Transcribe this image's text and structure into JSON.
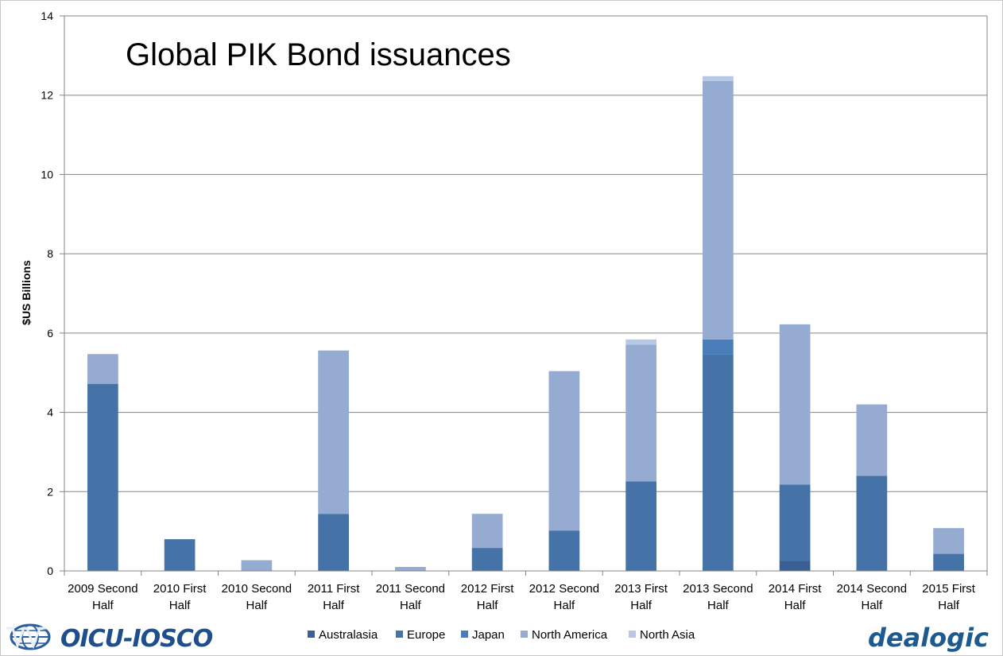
{
  "chart_data": {
    "type": "bar",
    "stacked": true,
    "title": "Global PIK Bond issuances",
    "xlabel": "",
    "ylabel": "$US Billions",
    "ylim": [
      0,
      14
    ],
    "yticks": [
      "0",
      "2",
      "4",
      "6",
      "8",
      "10",
      "12",
      "14"
    ],
    "grid": true,
    "legend_position": "bottom",
    "categories": [
      [
        "2009 Second",
        "Half"
      ],
      [
        "2010 First",
        "Half"
      ],
      [
        "2010 Second",
        "Half"
      ],
      [
        "2011 First",
        "Half"
      ],
      [
        "2011 Second",
        "Half"
      ],
      [
        "2012 First",
        "Half"
      ],
      [
        "2012 Second",
        "Half"
      ],
      [
        "2013 First",
        "Half"
      ],
      [
        "2013 Second",
        "Half"
      ],
      [
        "2014 First",
        "Half"
      ],
      [
        "2014 Second",
        "Half"
      ],
      [
        "2015 First",
        "Half"
      ]
    ],
    "series": [
      {
        "name": "Australasia",
        "color": "#3a5f94",
        "values": [
          0,
          0,
          0,
          0,
          0,
          0,
          0,
          0,
          0,
          0.25,
          0,
          0
        ]
      },
      {
        "name": "Europe",
        "color": "#4572a7",
        "values": [
          4.72,
          0.8,
          0,
          1.44,
          0,
          0.58,
          1.02,
          2.26,
          5.47,
          1.93,
          2.4,
          0.43
        ]
      },
      {
        "name": "Japan",
        "color": "#4a7ebb",
        "values": [
          0,
          0,
          0,
          0,
          0,
          0,
          0,
          0,
          0.37,
          0,
          0,
          0
        ]
      },
      {
        "name": "North America",
        "color": "#95abd2",
        "values": [
          0.75,
          0,
          0.27,
          4.12,
          0.1,
          0.86,
          4.02,
          3.45,
          6.52,
          4.04,
          1.8,
          0.65
        ]
      },
      {
        "name": "North Asia",
        "color": "#b7c8e4",
        "values": [
          0,
          0,
          0,
          0,
          0,
          0,
          0,
          0.13,
          0.12,
          0,
          0,
          0
        ]
      }
    ]
  },
  "logos": {
    "left_text": "OICU-IOSCO",
    "right_text": "dealogic"
  }
}
